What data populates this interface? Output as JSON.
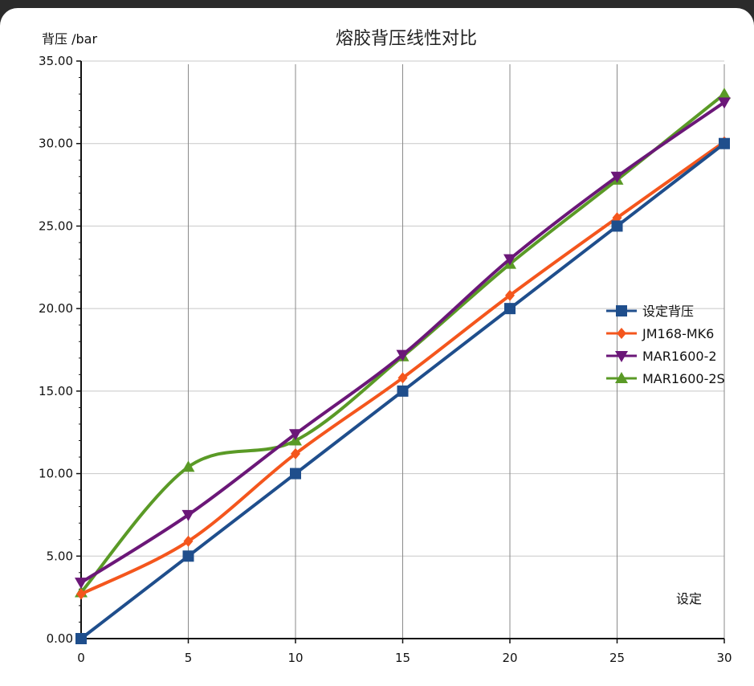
{
  "chart_data": {
    "type": "line",
    "title": "熔胶背压线性对比",
    "ylabel": "背压 /bar",
    "xlabel": "设定",
    "x": [
      0,
      5,
      10,
      15,
      20,
      25,
      30
    ],
    "xlim": [
      0,
      30
    ],
    "ylim": [
      0,
      35
    ],
    "x_ticks": [
      "0",
      "5",
      "10",
      "15",
      "20",
      "25",
      "30"
    ],
    "y_ticks": [
      "0.00",
      "5.00",
      "10.00",
      "15.00",
      "20.00",
      "25.00",
      "30.00",
      "35.00"
    ],
    "grid": true,
    "legend_position": "right",
    "series": [
      {
        "name": "设定背压",
        "color": "#1f4e8c",
        "marker": "square",
        "values": [
          0,
          5,
          10,
          15,
          20,
          25,
          30
        ]
      },
      {
        "name": "JM168-MK6",
        "color": "#f4561d",
        "marker": "diamond",
        "values": [
          2.7,
          5.9,
          11.2,
          15.8,
          20.8,
          25.5,
          30.1
        ]
      },
      {
        "name": "MAR1600-2",
        "color": "#6b1778",
        "marker": "triangle-down",
        "values": [
          3.4,
          7.5,
          12.4,
          17.2,
          23.0,
          28.0,
          32.5
        ]
      },
      {
        "name": "MAR1600-2S",
        "color": "#5a9a26",
        "marker": "triangle-up",
        "values": [
          2.8,
          10.4,
          12.0,
          17.1,
          22.7,
          27.8,
          33.0
        ]
      }
    ]
  }
}
